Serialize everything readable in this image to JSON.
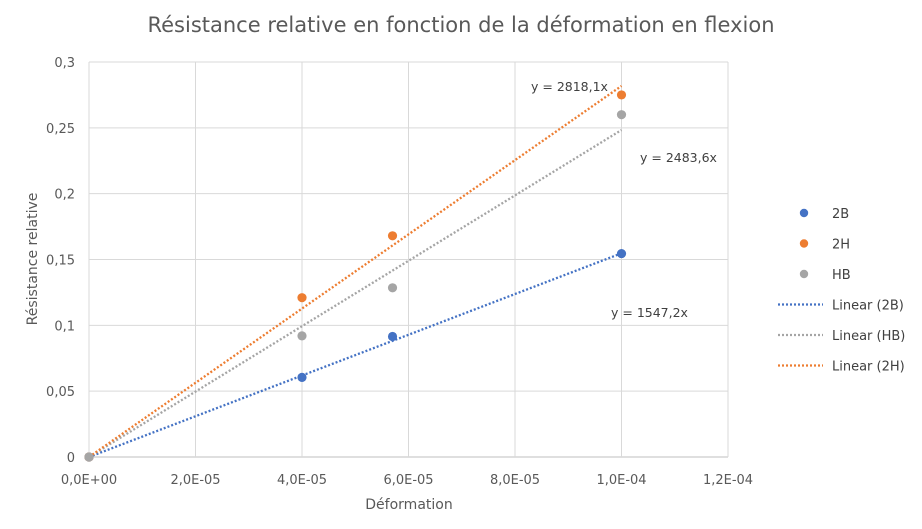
{
  "chart_data": {
    "type": "scatter",
    "title": "Résistance relative en fonction de la déformation en flexion",
    "xlabel": "Déformation",
    "ylabel": "Résistance relative",
    "xlim": [
      0,
      0.00012
    ],
    "ylim": [
      0,
      0.3
    ],
    "x_ticks": [
      "0,0E+00",
      "2,0E-05",
      "4,0E-05",
      "6,0E-05",
      "8,0E-05",
      "1,0E-04",
      "1,2E-04"
    ],
    "y_ticks": [
      "0",
      "0,05",
      "0,1",
      "0,15",
      "0,2",
      "0,25",
      "0,3"
    ],
    "grid": true,
    "legend_position": "right",
    "series": [
      {
        "name": "2B",
        "color": "#4472C4",
        "points": [
          [
            0,
            0
          ],
          [
            4e-05,
            0.0605
          ],
          [
            5.7e-05,
            0.0915
          ],
          [
            0.0001,
            0.1545
          ]
        ]
      },
      {
        "name": "2H",
        "color": "#ED7D31",
        "points": [
          [
            0,
            0
          ],
          [
            4e-05,
            0.121
          ],
          [
            5.7e-05,
            0.168
          ],
          [
            0.0001,
            0.275
          ]
        ]
      },
      {
        "name": "HB",
        "color": "#A5A5A5",
        "points": [
          [
            0,
            0
          ],
          [
            4e-05,
            0.092
          ],
          [
            5.7e-05,
            0.1285
          ],
          [
            0.0001,
            0.26
          ]
        ]
      }
    ],
    "trendlines": [
      {
        "name": "Linear (2B)",
        "series": "2B",
        "slope": 1547.2,
        "color": "#4472C4",
        "x_range": [
          0,
          0.0001
        ],
        "equation": "y = 1547,2x"
      },
      {
        "name": "Linear (HB)",
        "series": "HB",
        "slope": 2483.6,
        "color": "#A5A5A5",
        "x_range": [
          0,
          0.0001
        ],
        "equation": "y = 2483,6x"
      },
      {
        "name": "Linear (2H)",
        "series": "2H",
        "slope": 2818.1,
        "color": "#ED7D31",
        "x_range": [
          0,
          0.0001
        ],
        "equation": "y = 2818,1x"
      }
    ],
    "legend": [
      "2B",
      "2H",
      "HB",
      "Linear (2B)",
      "Linear (HB)",
      "Linear (2H)"
    ]
  }
}
